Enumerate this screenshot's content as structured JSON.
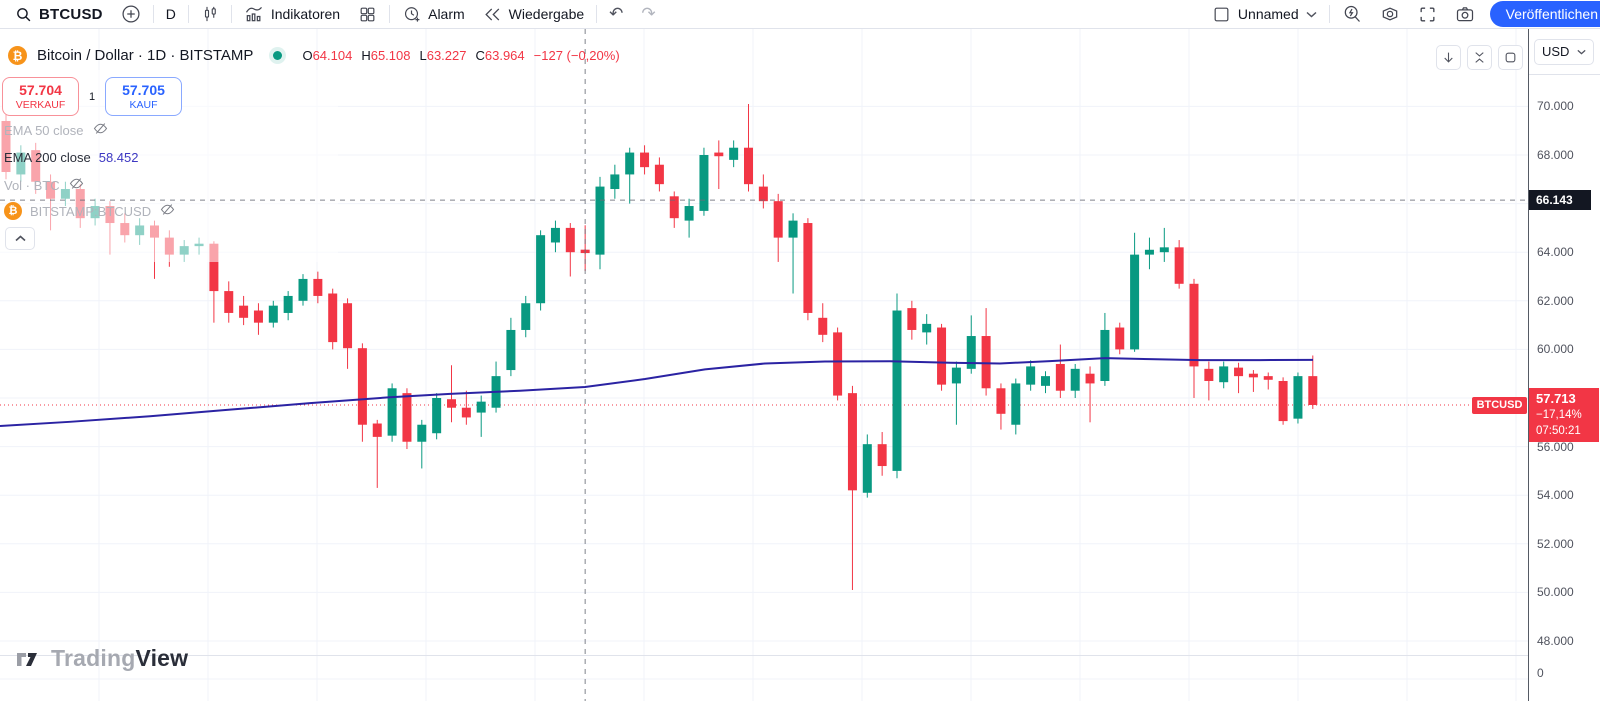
{
  "topbar": {
    "symbol": "BTCUSD",
    "interval": "D",
    "indicators_label": "Indikatoren",
    "alarm_label": "Alarm",
    "replay_label": "Wiedergabe",
    "undo_glyph": "↶",
    "redo_glyph": "↷",
    "layout_name": "Unnamed",
    "publish_label": "Veröffentlichen"
  },
  "header": {
    "title": "Bitcoin / Dollar · 1D · BITSTAMP",
    "ohlc": {
      "o_label": "O",
      "o": "64.104",
      "h_label": "H",
      "h": "65.108",
      "l_label": "L",
      "l": "63.227",
      "c_label": "C",
      "c": "63.964",
      "change": "−127 (−0,20%)"
    }
  },
  "trade": {
    "sell_price": "57.704",
    "sell_label": "VERKAUF",
    "spread": "1",
    "buy_price": "57.705",
    "buy_label": "KAUF"
  },
  "legend": {
    "ema50": {
      "label": "EMA 50 close"
    },
    "ema200": {
      "label": "EMA 200 close",
      "value": "58.452"
    },
    "vol": {
      "label": "Vol · BTC"
    },
    "symbol_row": {
      "label": "BITSTAMP:BTCUSD"
    }
  },
  "price_scale": {
    "currency": "USD",
    "ticks": [
      {
        "label": "70.000",
        "price": 70000
      },
      {
        "label": "68.000",
        "price": 68000
      },
      {
        "label": "66.000",
        "price": 66000
      },
      {
        "label": "64.000",
        "price": 64000
      },
      {
        "label": "62.000",
        "price": 62000
      },
      {
        "label": "60.000",
        "price": 60000
      },
      {
        "label": "58.000",
        "price": 58000
      },
      {
        "label": "56.000",
        "price": 56000
      },
      {
        "label": "54.000",
        "price": 54000
      },
      {
        "label": "52.000",
        "price": 52000
      },
      {
        "label": "50.000",
        "price": 50000
      },
      {
        "label": "48.000",
        "price": 48000
      }
    ],
    "zero_label": "0",
    "crosshair_label": "66.143",
    "last": {
      "tag": "BTCUSD",
      "price_label": "57.713",
      "change": "−17,14%",
      "countdown": "07:50:21"
    }
  },
  "watermark": {
    "part1": "Trading",
    "part2": "View"
  },
  "chart_data": {
    "type": "candlestick",
    "symbol": "BTCUSD",
    "exchange": "BITSTAMP",
    "interval": "1D",
    "title": "Bitcoin / Dollar · 1D · BITSTAMP",
    "up_color": "#089981",
    "down_color": "#f23645",
    "ema_color": "#2b23a3",
    "grid_color": "#f0f3fa",
    "ylim": [
      47000,
      70600
    ],
    "y_ticks": [
      70000,
      68000,
      66000,
      64000,
      62000,
      60000,
      58000,
      56000,
      54000,
      52000,
      50000,
      48000
    ],
    "crosshair": {
      "candle_index": 39,
      "price": 66143,
      "candle_ohlc": [
        64104,
        65108,
        63227,
        63964
      ]
    },
    "last_price": 57713,
    "candles": [
      [
        69400,
        69700,
        67000,
        67300
      ],
      [
        67200,
        68400,
        66900,
        68100
      ],
      [
        68200,
        68500,
        66400,
        66900
      ],
      [
        66900,
        67200,
        64900,
        66200
      ],
      [
        66200,
        66900,
        65900,
        66600
      ],
      [
        66600,
        66800,
        65000,
        65400
      ],
      [
        65400,
        66200,
        65100,
        65900
      ],
      [
        65900,
        66100,
        63900,
        65200
      ],
      [
        65200,
        65600,
        64400,
        64700
      ],
      [
        64700,
        65400,
        64300,
        65100
      ],
      [
        65100,
        65300,
        62900,
        64600
      ],
      [
        64600,
        64900,
        63400,
        63900
      ],
      [
        63900,
        64500,
        63600,
        64250
      ],
      [
        64250,
        64600,
        63900,
        64350
      ],
      [
        64350,
        64450,
        61100,
        62400
      ],
      [
        62400,
        62800,
        61100,
        61500
      ],
      [
        61800,
        62200,
        61000,
        61300
      ],
      [
        61600,
        61900,
        60600,
        61100
      ],
      [
        61100,
        62000,
        60900,
        61800
      ],
      [
        61500,
        62400,
        61200,
        62200
      ],
      [
        62000,
        63100,
        61800,
        62900
      ],
      [
        62900,
        63200,
        61900,
        62200
      ],
      [
        62300,
        62500,
        60000,
        60300
      ],
      [
        61900,
        62100,
        59200,
        60050
      ],
      [
        60050,
        60250,
        56200,
        56900
      ],
      [
        56950,
        57100,
        54300,
        56400
      ],
      [
        56450,
        58600,
        56200,
        58400
      ],
      [
        58200,
        58400,
        55900,
        56200
      ],
      [
        56200,
        57100,
        55100,
        56900
      ],
      [
        56550,
        58200,
        56300,
        58000
      ],
      [
        57950,
        59350,
        57000,
        57600
      ],
      [
        57600,
        58300,
        56900,
        57200
      ],
      [
        57400,
        58100,
        56400,
        57850
      ],
      [
        57600,
        59500,
        57400,
        58900
      ],
      [
        59150,
        61300,
        58900,
        60800
      ],
      [
        60800,
        62200,
        60500,
        61900
      ],
      [
        61900,
        64900,
        61600,
        64700
      ],
      [
        64400,
        65300,
        64000,
        65000
      ],
      [
        65000,
        65200,
        63000,
        64000
      ],
      [
        64104,
        65108,
        63227,
        63964
      ],
      [
        63900,
        67100,
        63300,
        66700
      ],
      [
        66600,
        67600,
        66200,
        67200
      ],
      [
        67200,
        68300,
        66000,
        68100
      ],
      [
        68100,
        68400,
        67200,
        67500
      ],
      [
        67600,
        67900,
        66500,
        66800
      ],
      [
        66300,
        66500,
        65000,
        65400
      ],
      [
        65300,
        66200,
        64600,
        65900
      ],
      [
        65700,
        68300,
        65500,
        68000
      ],
      [
        68100,
        68600,
        66600,
        67950
      ],
      [
        67800,
        68600,
        67500,
        68300
      ],
      [
        68300,
        70100,
        66500,
        66800
      ],
      [
        66700,
        67200,
        65800,
        66100
      ],
      [
        66100,
        66400,
        63600,
        64600
      ],
      [
        64600,
        65600,
        62300,
        65300
      ],
      [
        65200,
        65400,
        61200,
        61500
      ],
      [
        61300,
        61900,
        60300,
        60600
      ],
      [
        60700,
        60900,
        57900,
        58100
      ],
      [
        58200,
        58500,
        50100,
        54200
      ],
      [
        54100,
        56500,
        53900,
        56100
      ],
      [
        56100,
        56600,
        54800,
        55200
      ],
      [
        55000,
        62300,
        54700,
        61600
      ],
      [
        61700,
        62000,
        60400,
        60800
      ],
      [
        60700,
        61450,
        60200,
        61050
      ],
      [
        60900,
        61050,
        58300,
        58550
      ],
      [
        58600,
        59500,
        56900,
        59250
      ],
      [
        59200,
        61400,
        59000,
        60550
      ],
      [
        60550,
        61700,
        58100,
        58400
      ],
      [
        58400,
        58600,
        56700,
        57350
      ],
      [
        56900,
        58800,
        56500,
        58600
      ],
      [
        58550,
        59550,
        58300,
        59300
      ],
      [
        58500,
        59100,
        58200,
        58900
      ],
      [
        59400,
        60200,
        58000,
        58300
      ],
      [
        58300,
        59400,
        58000,
        59200
      ],
      [
        59000,
        59300,
        57000,
        58600
      ],
      [
        58700,
        61500,
        58500,
        60800
      ],
      [
        60900,
        61100,
        59800,
        60000
      ],
      [
        60000,
        64800,
        59900,
        63900
      ],
      [
        63900,
        64600,
        63300,
        64100
      ],
      [
        64000,
        65000,
        63600,
        64200
      ],
      [
        64200,
        64500,
        62500,
        62700
      ],
      [
        62700,
        62900,
        58000,
        59300
      ],
      [
        59200,
        59500,
        57900,
        58700
      ],
      [
        58650,
        59500,
        58400,
        59300
      ],
      [
        59250,
        59450,
        58200,
        58900
      ],
      [
        59000,
        59150,
        58250,
        58850
      ],
      [
        58900,
        59050,
        58350,
        58750
      ],
      [
        58700,
        58850,
        56900,
        57050
      ],
      [
        57150,
        59050,
        56950,
        58900
      ],
      [
        58900,
        59750,
        57550,
        57713
      ]
    ],
    "ema_200": {
      "name": "EMA 200",
      "value_at_crosshair": 58452,
      "points": [
        [
          0,
          56850
        ],
        [
          70,
          57020
        ],
        [
          150,
          57250
        ],
        [
          230,
          57520
        ],
        [
          310,
          57790
        ],
        [
          390,
          58030
        ],
        [
          450,
          58170
        ],
        [
          520,
          58300
        ],
        [
          585,
          58452
        ],
        [
          645,
          58780
        ],
        [
          705,
          59180
        ],
        [
          765,
          59420
        ],
        [
          825,
          59500
        ],
        [
          890,
          59510
        ],
        [
          950,
          59450
        ],
        [
          1000,
          59420
        ],
        [
          1050,
          59520
        ],
        [
          1105,
          59640
        ],
        [
          1150,
          59600
        ],
        [
          1200,
          59560
        ],
        [
          1260,
          59560
        ],
        [
          1313,
          59570
        ]
      ]
    }
  }
}
